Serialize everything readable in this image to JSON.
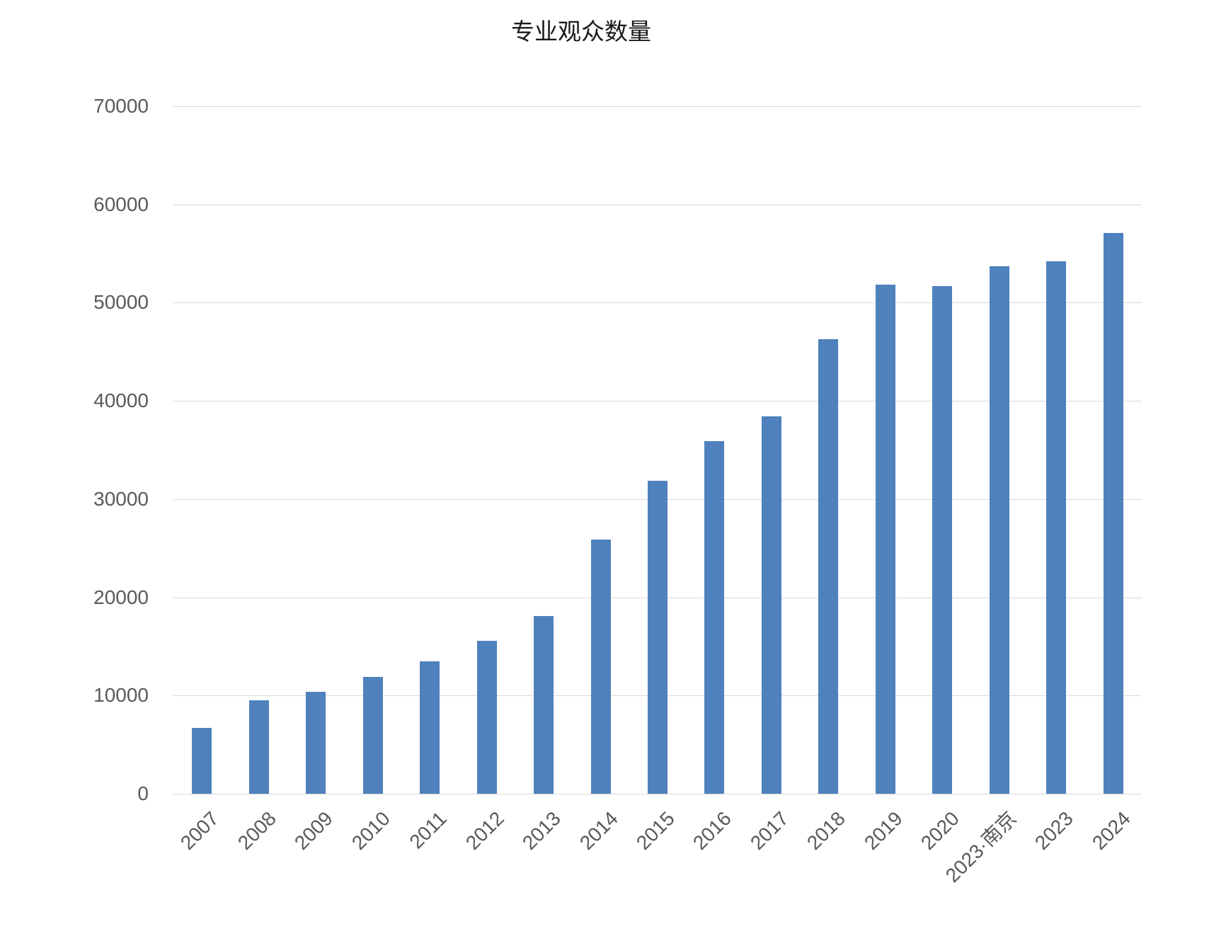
{
  "title": "专业观众数量",
  "chart_data": {
    "type": "bar",
    "title": "专业观众数量",
    "categories": [
      "2007",
      "2008",
      "2009",
      "2010",
      "2011",
      "2012",
      "2013",
      "2014",
      "2015",
      "2016",
      "2017",
      "2018",
      "2019",
      "2020",
      "2023·南京",
      "2023",
      "2024"
    ],
    "values": [
      6700,
      9500,
      10400,
      11900,
      13500,
      15600,
      18100,
      25900,
      31900,
      35900,
      38400,
      46300,
      51800,
      51700,
      53700,
      54200,
      57100
    ],
    "xlabel": "",
    "ylabel": "",
    "ylim": [
      0,
      70000
    ],
    "yticks": [
      0,
      10000,
      20000,
      30000,
      40000,
      50000,
      60000,
      70000
    ],
    "grid": true,
    "legend_position": "none",
    "colors": {
      "bar": "#4f81bd",
      "gridline": "#d9d9d9",
      "tick_text": "#595959",
      "title_text": "#1a1a1a",
      "background": "#ffffff"
    }
  }
}
